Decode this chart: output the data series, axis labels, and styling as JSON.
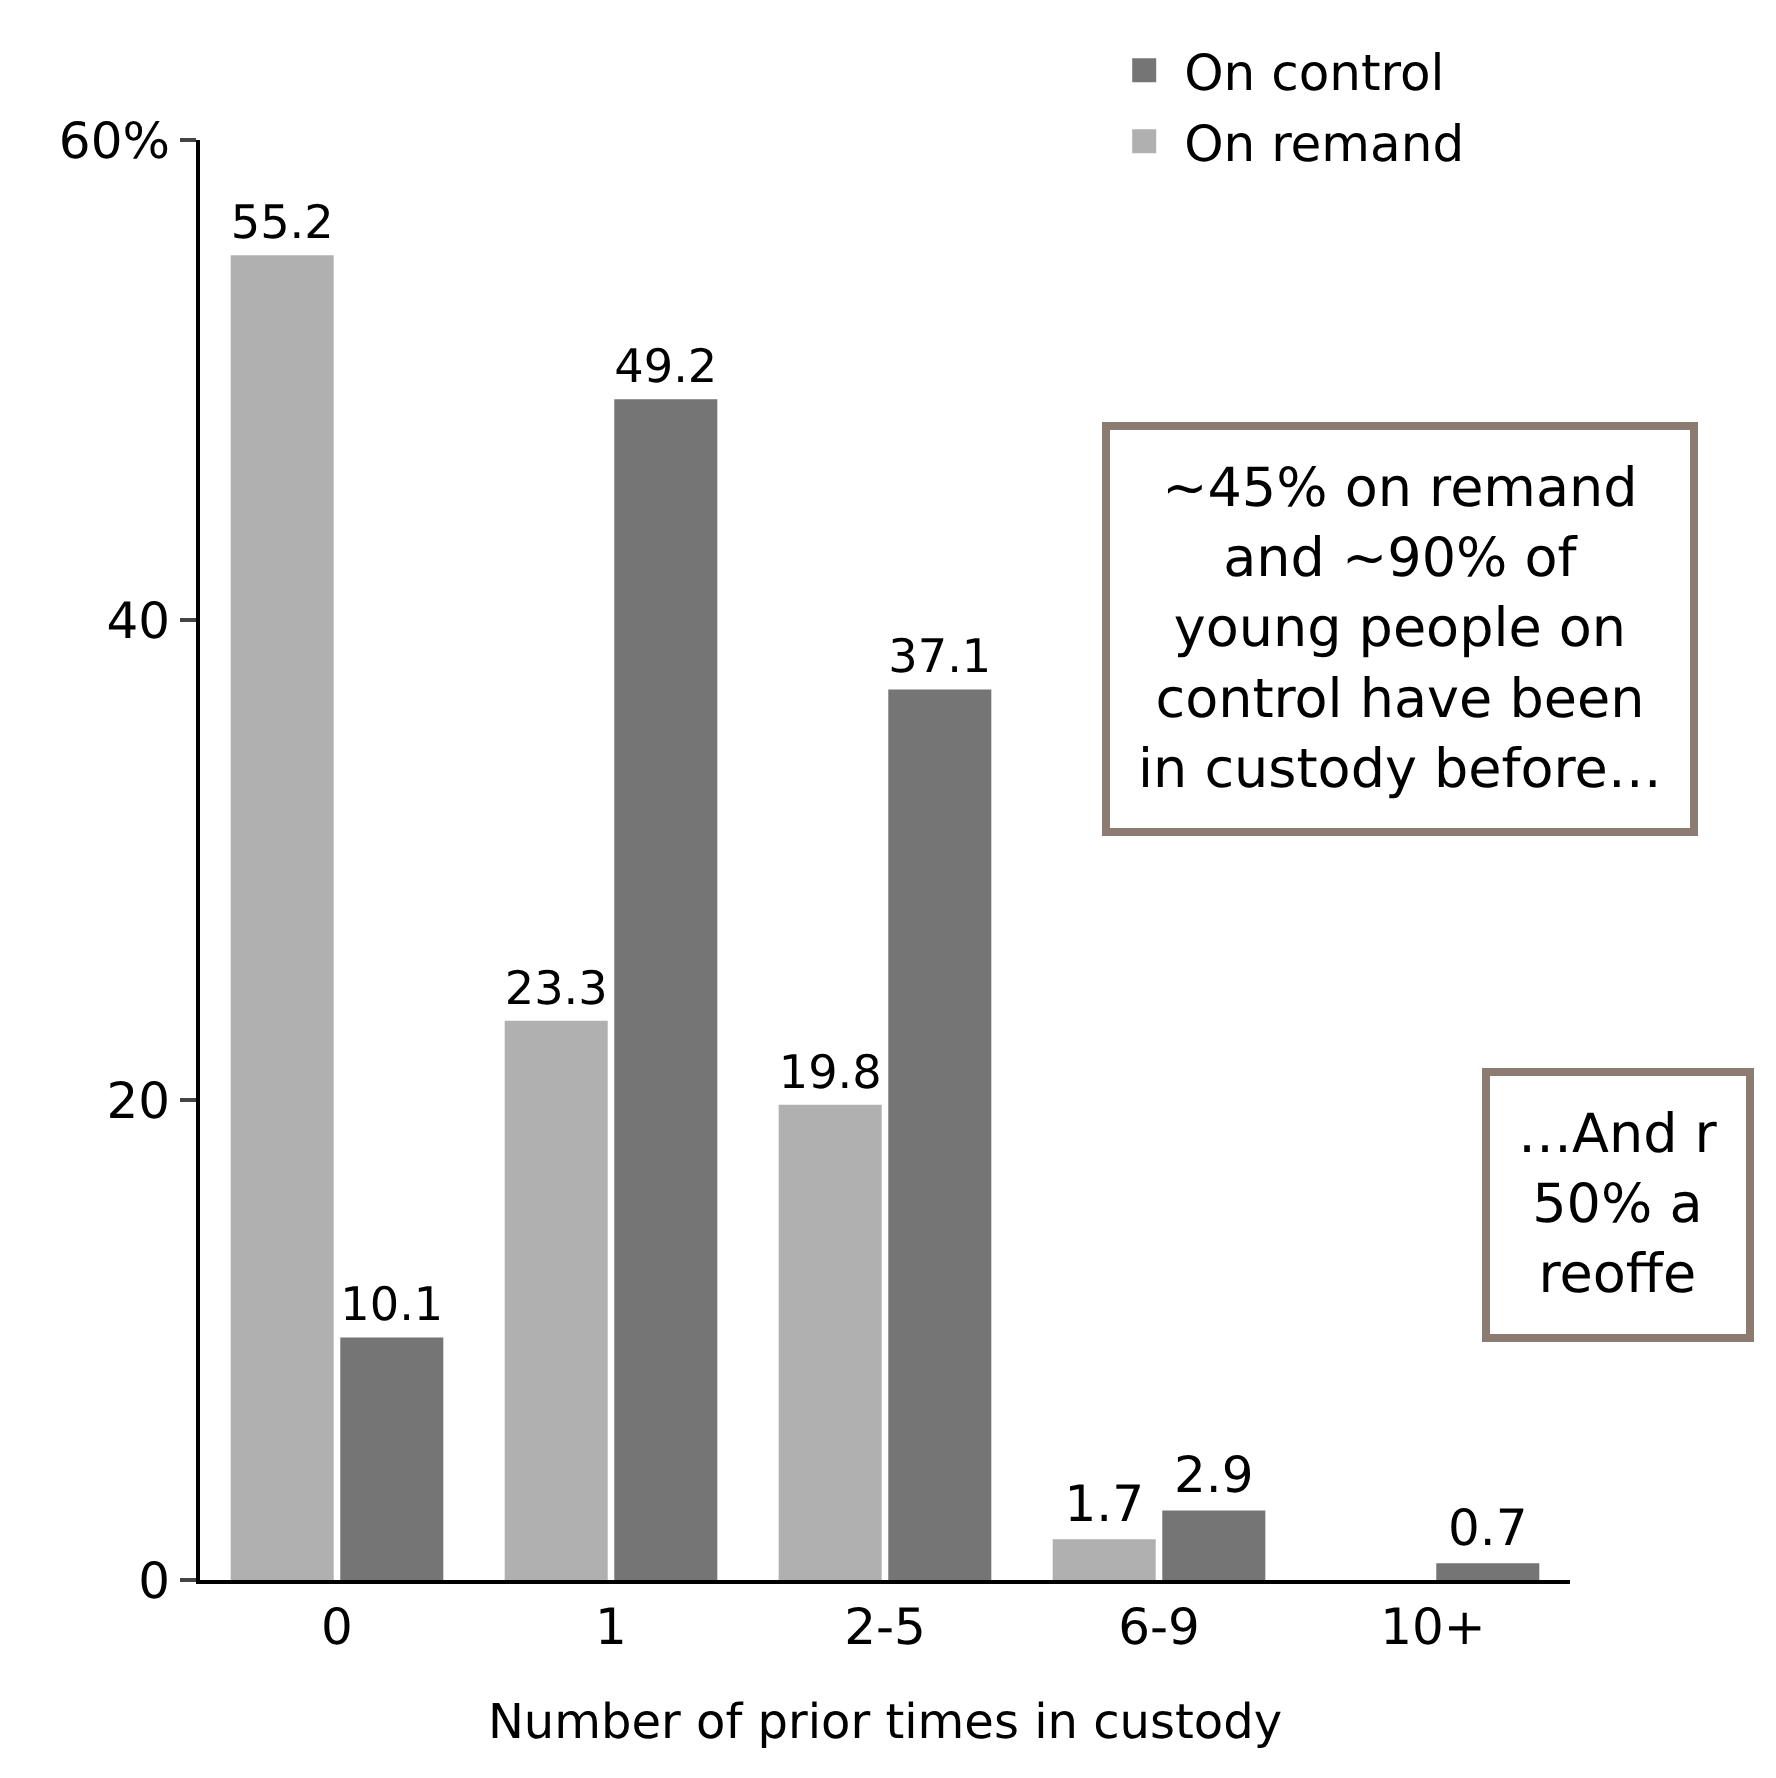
{
  "chart_data": {
    "type": "bar",
    "xlabel": "Number of prior times in custody",
    "categories": [
      "0",
      "1",
      "2-5",
      "6-9",
      "10+"
    ],
    "series": [
      {
        "name": "On remand",
        "color": "#b0b0b0",
        "values": [
          55.2,
          23.3,
          19.8,
          1.7,
          null
        ]
      },
      {
        "name": "On control",
        "color": "#757575",
        "values": [
          10.1,
          49.2,
          37.1,
          2.9,
          0.7
        ]
      }
    ],
    "ylim": [
      0,
      60
    ],
    "yticks": [
      0,
      20,
      40,
      {
        "value": 60,
        "label": "60%"
      }
    ],
    "data_labels": true,
    "legend": "top right",
    "annotations": [
      "~45% on remand\nand ~90% of\nyoung people on\ncontrol have been\nin custody before…",
      "…And r\n50% a\nreoffe"
    ]
  }
}
